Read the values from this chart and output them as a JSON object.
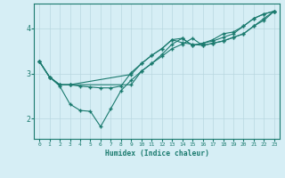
{
  "xlabel": "Humidex (Indice chaleur)",
  "background_color": "#d6eef5",
  "line_color": "#1a7a6e",
  "grid_color": "#b8d8e0",
  "xlim": [
    -0.5,
    23.5
  ],
  "ylim": [
    1.55,
    4.55
  ],
  "xticks": [
    0,
    1,
    2,
    3,
    4,
    5,
    6,
    7,
    8,
    9,
    10,
    11,
    12,
    13,
    14,
    15,
    16,
    17,
    18,
    19,
    20,
    21,
    22,
    23
  ],
  "yticks": [
    2,
    3,
    4
  ],
  "lines": [
    {
      "x": [
        0,
        1,
        2,
        3,
        4,
        5,
        6,
        7,
        8,
        9,
        10,
        11,
        12,
        13,
        14,
        15,
        16,
        17,
        18,
        19,
        20,
        21,
        22,
        23
      ],
      "y": [
        3.27,
        2.92,
        2.72,
        2.32,
        2.18,
        2.16,
        1.82,
        2.22,
        2.62,
        2.85,
        3.05,
        3.22,
        3.42,
        3.65,
        3.78,
        3.62,
        3.67,
        3.75,
        3.88,
        3.92,
        4.05,
        4.22,
        4.32,
        4.38
      ]
    },
    {
      "x": [
        0,
        1,
        2,
        3,
        4,
        5,
        6,
        7,
        8,
        9,
        10,
        11,
        12,
        13,
        14,
        15,
        16,
        17,
        18,
        19,
        20,
        21,
        22,
        23
      ],
      "y": [
        3.27,
        2.92,
        2.75,
        2.75,
        2.72,
        2.7,
        2.68,
        2.68,
        2.72,
        3.02,
        3.22,
        3.4,
        3.55,
        3.75,
        3.78,
        3.62,
        3.67,
        3.72,
        3.8,
        3.88,
        4.05,
        4.22,
        4.32,
        4.38
      ]
    },
    {
      "x": [
        0,
        1,
        2,
        3,
        9,
        10,
        11,
        12,
        13,
        14,
        15,
        16,
        17,
        18,
        19,
        20,
        21,
        22,
        23
      ],
      "y": [
        3.27,
        2.92,
        2.75,
        2.75,
        2.98,
        3.22,
        3.4,
        3.55,
        3.75,
        3.68,
        3.65,
        3.62,
        3.67,
        3.72,
        3.8,
        3.88,
        4.05,
        4.22,
        4.38
      ]
    },
    {
      "x": [
        0,
        1,
        2,
        3,
        9,
        10,
        11,
        12,
        13,
        14,
        15,
        16,
        17,
        18,
        19,
        20,
        21,
        22,
        23
      ],
      "y": [
        3.27,
        2.92,
        2.75,
        2.75,
        2.75,
        3.05,
        3.22,
        3.38,
        3.55,
        3.65,
        3.78,
        3.62,
        3.67,
        3.72,
        3.8,
        3.88,
        4.05,
        4.18,
        4.38
      ]
    }
  ]
}
